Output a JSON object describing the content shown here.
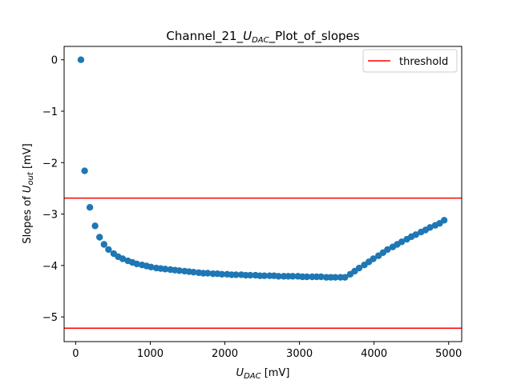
{
  "chart_data": {
    "type": "scatter",
    "title": {
      "pre": "Channel_21_",
      "base": "U",
      "sub": "DAC",
      "post": "_Plot_of_slopes"
    },
    "xlabel": {
      "base": "U",
      "sub": "DAC",
      "post": " [mV]"
    },
    "ylabel": {
      "pre": "Slopes of ",
      "base": "U",
      "sub": "out",
      "post": " [mV]"
    },
    "xlim": [
      -155,
      5175
    ],
    "ylim": [
      -5.48,
      0.26
    ],
    "xticks": [
      0,
      1000,
      2000,
      3000,
      4000,
      5000
    ],
    "xtick_labels": [
      "0",
      "1000",
      "2000",
      "3000",
      "4000",
      "5000"
    ],
    "yticks": [
      0,
      -1,
      -2,
      -3,
      -4,
      -5
    ],
    "ytick_labels": [
      "0",
      "−1",
      "−2",
      "−3",
      "−4",
      "−5"
    ],
    "grid": false,
    "legend": {
      "position": "top-right",
      "entries": [
        {
          "label": "threshold",
          "color": "#ff0000"
        }
      ]
    },
    "thresholds": [
      -2.69,
      -5.22
    ],
    "series": [
      {
        "color": "#1f77b4",
        "points": [
          [
            70,
            0.0
          ],
          [
            120,
            -2.16
          ],
          [
            190,
            -2.87
          ],
          [
            260,
            -3.23
          ],
          [
            320,
            -3.45
          ],
          [
            380,
            -3.59
          ],
          [
            440,
            -3.69
          ],
          [
            510,
            -3.77
          ],
          [
            570,
            -3.83
          ],
          [
            630,
            -3.87
          ],
          [
            700,
            -3.91
          ],
          [
            760,
            -3.94
          ],
          [
            820,
            -3.97
          ],
          [
            890,
            -3.99
          ],
          [
            950,
            -4.01
          ],
          [
            1010,
            -4.03
          ],
          [
            1080,
            -4.05
          ],
          [
            1140,
            -4.06
          ],
          [
            1200,
            -4.07
          ],
          [
            1270,
            -4.08
          ],
          [
            1330,
            -4.09
          ],
          [
            1390,
            -4.1
          ],
          [
            1460,
            -4.11
          ],
          [
            1520,
            -4.12
          ],
          [
            1580,
            -4.13
          ],
          [
            1650,
            -4.14
          ],
          [
            1710,
            -4.15
          ],
          [
            1770,
            -4.15
          ],
          [
            1840,
            -4.16
          ],
          [
            1900,
            -4.16
          ],
          [
            1960,
            -4.17
          ],
          [
            2030,
            -4.17
          ],
          [
            2090,
            -4.18
          ],
          [
            2150,
            -4.18
          ],
          [
            2220,
            -4.18
          ],
          [
            2280,
            -4.19
          ],
          [
            2340,
            -4.19
          ],
          [
            2410,
            -4.19
          ],
          [
            2470,
            -4.2
          ],
          [
            2530,
            -4.2
          ],
          [
            2600,
            -4.2
          ],
          [
            2660,
            -4.2
          ],
          [
            2720,
            -4.21
          ],
          [
            2790,
            -4.21
          ],
          [
            2850,
            -4.21
          ],
          [
            2910,
            -4.21
          ],
          [
            2980,
            -4.21
          ],
          [
            3040,
            -4.22
          ],
          [
            3100,
            -4.22
          ],
          [
            3170,
            -4.22
          ],
          [
            3230,
            -4.22
          ],
          [
            3290,
            -4.22
          ],
          [
            3360,
            -4.23
          ],
          [
            3420,
            -4.23
          ],
          [
            3480,
            -4.23
          ],
          [
            3550,
            -4.23
          ],
          [
            3610,
            -4.23
          ],
          [
            3680,
            -4.17
          ],
          [
            3740,
            -4.11
          ],
          [
            3800,
            -4.05
          ],
          [
            3870,
            -3.99
          ],
          [
            3930,
            -3.93
          ],
          [
            3990,
            -3.87
          ],
          [
            4060,
            -3.81
          ],
          [
            4120,
            -3.75
          ],
          [
            4180,
            -3.69
          ],
          [
            4250,
            -3.64
          ],
          [
            4310,
            -3.59
          ],
          [
            4370,
            -3.54
          ],
          [
            4440,
            -3.49
          ],
          [
            4500,
            -3.44
          ],
          [
            4560,
            -3.4
          ],
          [
            4630,
            -3.35
          ],
          [
            4690,
            -3.31
          ],
          [
            4750,
            -3.26
          ],
          [
            4820,
            -3.22
          ],
          [
            4880,
            -3.18
          ],
          [
            4940,
            -3.12
          ]
        ]
      }
    ]
  }
}
